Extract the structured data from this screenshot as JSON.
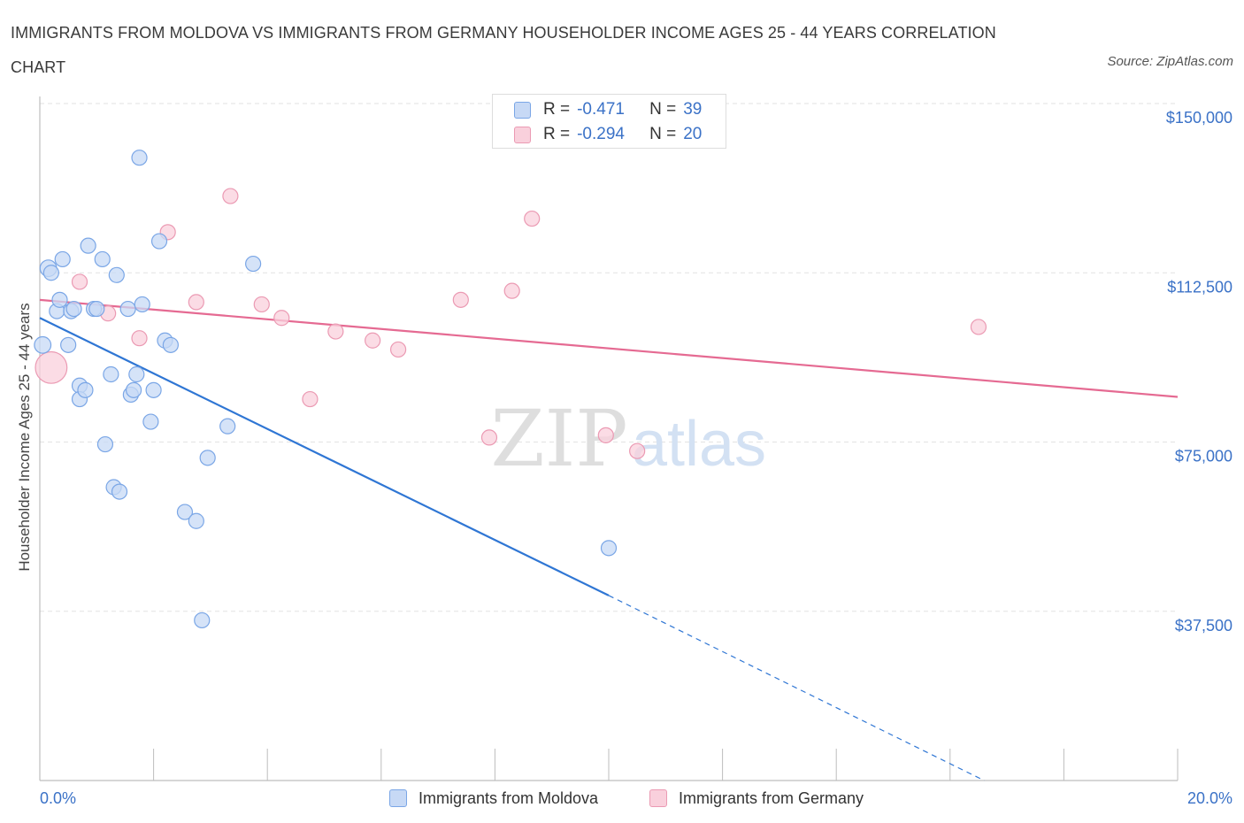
{
  "title": "IMMIGRANTS FROM MOLDOVA VS IMMIGRANTS FROM GERMANY HOUSEHOLDER INCOME AGES 25 - 44 YEARS CORRELATION CHART",
  "source": "Source: ZipAtlas.com",
  "watermark": {
    "zip": "ZIP",
    "atlas": "atlas"
  },
  "legend": {
    "rows": [
      {
        "r_label": "R =",
        "r_value": "-0.471",
        "n_label": "N =",
        "n_value": "39"
      },
      {
        "r_label": "R =",
        "r_value": "-0.294",
        "n_label": "N =",
        "n_value": "20"
      }
    ]
  },
  "bottom_legend": [
    "Immigrants from Moldova",
    "Immigrants from Germany"
  ],
  "colors": {
    "blue_fill": "#c7d9f5",
    "blue_stroke": "#7aa6e6",
    "blue_line": "#2f76d4",
    "pink_fill": "#f9d0dc",
    "pink_stroke": "#eb9ab3",
    "pink_line": "#e56a92",
    "tick_label": "#3b72c7",
    "grid": "#e2e2e2"
  },
  "chart_data": {
    "type": "scatter",
    "title": "IMMIGRANTS FROM MOLDOVA VS IMMIGRANTS FROM GERMANY HOUSEHOLDER INCOME AGES 25 - 44 YEARS CORRELATION CHART",
    "xlabel": "",
    "ylabel": "Householder Income Ages 25 - 44 years",
    "xlim": [
      0,
      20
    ],
    "ylim": [
      0,
      150000
    ],
    "x_tick_labels": [
      "0.0%",
      "20.0%"
    ],
    "y_ticks": [
      37500,
      75000,
      112500,
      150000
    ],
    "y_tick_labels": [
      "$37,500",
      "$75,000",
      "$112,500",
      "$150,000"
    ],
    "series": [
      {
        "name": "Immigrants from Moldova",
        "color": "#7aa6e6",
        "r": -0.471,
        "n": 39,
        "trend": {
          "x0": 0,
          "y0": 102500,
          "x1": 10.0,
          "y1": 41000,
          "dash_to_x": 16.6,
          "dash_to_y": 0
        },
        "points": [
          {
            "x": 0.05,
            "y": 96500,
            "s": 1.1
          },
          {
            "x": 0.15,
            "y": 113500,
            "s": 1.1
          },
          {
            "x": 0.2,
            "y": 112500,
            "s": 1
          },
          {
            "x": 0.3,
            "y": 104000,
            "s": 1
          },
          {
            "x": 0.35,
            "y": 106500,
            "s": 1
          },
          {
            "x": 0.4,
            "y": 115500,
            "s": 1
          },
          {
            "x": 0.5,
            "y": 96500,
            "s": 1
          },
          {
            "x": 0.55,
            "y": 104000,
            "s": 1
          },
          {
            "x": 0.6,
            "y": 104500,
            "s": 1
          },
          {
            "x": 0.7,
            "y": 87500,
            "s": 1
          },
          {
            "x": 0.7,
            "y": 84500,
            "s": 1
          },
          {
            "x": 0.8,
            "y": 86500,
            "s": 1
          },
          {
            "x": 0.85,
            "y": 118500,
            "s": 1
          },
          {
            "x": 0.95,
            "y": 104500,
            "s": 1
          },
          {
            "x": 1.0,
            "y": 104500,
            "s": 1
          },
          {
            "x": 1.1,
            "y": 115500,
            "s": 1
          },
          {
            "x": 1.15,
            "y": 74500,
            "s": 1
          },
          {
            "x": 1.25,
            "y": 90000,
            "s": 1
          },
          {
            "x": 1.3,
            "y": 65000,
            "s": 1
          },
          {
            "x": 1.35,
            "y": 112000,
            "s": 1
          },
          {
            "x": 1.4,
            "y": 64000,
            "s": 1
          },
          {
            "x": 1.55,
            "y": 104500,
            "s": 1
          },
          {
            "x": 1.6,
            "y": 85500,
            "s": 1
          },
          {
            "x": 1.65,
            "y": 86500,
            "s": 1
          },
          {
            "x": 1.7,
            "y": 90000,
            "s": 1
          },
          {
            "x": 1.75,
            "y": 138000,
            "s": 1
          },
          {
            "x": 1.8,
            "y": 105500,
            "s": 1
          },
          {
            "x": 1.95,
            "y": 79500,
            "s": 1
          },
          {
            "x": 2.0,
            "y": 86500,
            "s": 1
          },
          {
            "x": 2.1,
            "y": 119500,
            "s": 1
          },
          {
            "x": 2.2,
            "y": 97500,
            "s": 1
          },
          {
            "x": 2.3,
            "y": 96500,
            "s": 1
          },
          {
            "x": 2.55,
            "y": 59500,
            "s": 1
          },
          {
            "x": 2.75,
            "y": 57500,
            "s": 1
          },
          {
            "x": 2.85,
            "y": 35500,
            "s": 1
          },
          {
            "x": 2.95,
            "y": 71500,
            "s": 1
          },
          {
            "x": 3.3,
            "y": 78500,
            "s": 1
          },
          {
            "x": 3.75,
            "y": 114500,
            "s": 1
          },
          {
            "x": 10.0,
            "y": 51500,
            "s": 1
          }
        ]
      },
      {
        "name": "Immigrants from Germany",
        "color": "#eb9ab3",
        "r": -0.294,
        "n": 20,
        "trend": {
          "x0": 0,
          "y0": 106500,
          "x1": 20,
          "y1": 85000
        },
        "points": [
          {
            "x": 0.2,
            "y": 91500,
            "s": 2.1
          },
          {
            "x": 0.7,
            "y": 110500,
            "s": 1
          },
          {
            "x": 1.2,
            "y": 103500,
            "s": 1
          },
          {
            "x": 1.75,
            "y": 98000,
            "s": 1
          },
          {
            "x": 2.25,
            "y": 121500,
            "s": 1
          },
          {
            "x": 2.75,
            "y": 106000,
            "s": 1
          },
          {
            "x": 3.35,
            "y": 129500,
            "s": 1
          },
          {
            "x": 3.9,
            "y": 105500,
            "s": 1
          },
          {
            "x": 4.25,
            "y": 102500,
            "s": 1
          },
          {
            "x": 4.75,
            "y": 84500,
            "s": 1
          },
          {
            "x": 5.2,
            "y": 99500,
            "s": 1
          },
          {
            "x": 5.85,
            "y": 97500,
            "s": 1
          },
          {
            "x": 6.3,
            "y": 95500,
            "s": 1
          },
          {
            "x": 7.4,
            "y": 106500,
            "s": 1
          },
          {
            "x": 7.9,
            "y": 76000,
            "s": 1
          },
          {
            "x": 8.3,
            "y": 108500,
            "s": 1
          },
          {
            "x": 8.65,
            "y": 124500,
            "s": 1
          },
          {
            "x": 9.95,
            "y": 76500,
            "s": 1
          },
          {
            "x": 10.5,
            "y": 73000,
            "s": 1
          },
          {
            "x": 16.5,
            "y": 100500,
            "s": 1
          }
        ]
      }
    ]
  }
}
